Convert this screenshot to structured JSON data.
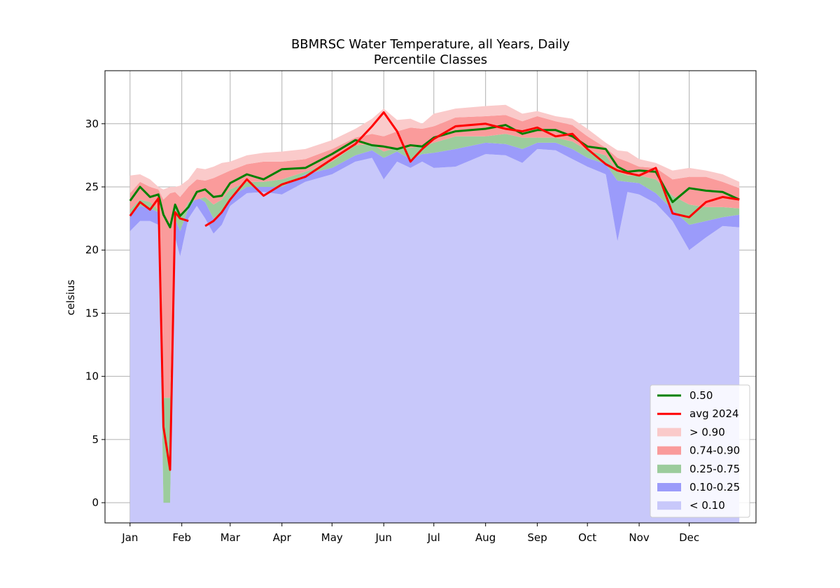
{
  "chart_data": {
    "type": "area",
    "title": "BBMRSC Water Temperature, all Years, Daily",
    "subtitle": "Percentile Classes",
    "xlabel": "",
    "ylabel": "celsius",
    "xlim": [
      -15,
      375
    ],
    "ylim": [
      -1.6,
      34.2
    ],
    "x_ticks": [
      {
        "label": "Jan",
        "day": 0
      },
      {
        "label": "Feb",
        "day": 31
      },
      {
        "label": "Mar",
        "day": 60
      },
      {
        "label": "Apr",
        "day": 91
      },
      {
        "label": "May",
        "day": 121
      },
      {
        "label": "Jun",
        "day": 152
      },
      {
        "label": "Jul",
        "day": 182
      },
      {
        "label": "Aug",
        "day": 213
      },
      {
        "label": "Sep",
        "day": 244
      },
      {
        "label": "Oct",
        "day": 274
      },
      {
        "label": "Nov",
        "day": 305
      },
      {
        "label": "Dec",
        "day": 335
      }
    ],
    "y_ticks": [
      0,
      5,
      10,
      15,
      20,
      25,
      30
    ],
    "grid": true,
    "legend_position": "lower-right",
    "days": [
      0,
      6,
      12,
      17,
      20,
      24,
      27,
      30,
      35,
      40,
      45,
      50,
      55,
      60,
      70,
      80,
      91,
      105,
      121,
      135,
      145,
      152,
      160,
      168,
      175,
      182,
      195,
      213,
      225,
      235,
      244,
      255,
      265,
      274,
      285,
      292,
      298,
      305,
      315,
      325,
      335,
      345,
      355,
      365
    ],
    "series": [
      {
        "name": "< 0.10",
        "role": "lower",
        "color": "#c8c8fa",
        "values": [
          21.5,
          22.3,
          22.3,
          22.0,
          0,
          0,
          21.0,
          19.5,
          22.5,
          23.5,
          22.5,
          21.3,
          22.0,
          23.5,
          24.5,
          24.6,
          24.4,
          25.4,
          26.0,
          27.0,
          27.3,
          25.6,
          27.0,
          26.5,
          27.0,
          26.5,
          26.6,
          27.6,
          27.5,
          26.9,
          28.0,
          27.9,
          27.2,
          26.6,
          26.0,
          20.7,
          24.6,
          24.4,
          23.7,
          22.3,
          20.0,
          21.0,
          21.9,
          21.8
        ]
      },
      {
        "name": "0.10-0.25",
        "role": "band",
        "color": "#9b9bfa",
        "values": [
          22.9,
          23.5,
          23.3,
          23.0,
          0,
          0,
          22.5,
          21.5,
          23.3,
          24.2,
          23.8,
          22.5,
          23.0,
          24.2,
          25.0,
          25.0,
          25.0,
          26.0,
          26.5,
          27.5,
          27.9,
          27.3,
          27.8,
          27.2,
          27.6,
          27.7,
          28.0,
          28.5,
          28.4,
          28.0,
          28.5,
          28.5,
          28.0,
          27.3,
          26.8,
          25.5,
          25.4,
          25.3,
          24.5,
          23.2,
          22.0,
          22.3,
          22.6,
          22.8
        ]
      },
      {
        "name": "0.25-0.75",
        "role": "band",
        "color": "#9ccc9c",
        "values": [
          23.2,
          24.0,
          23.8,
          23.2,
          8.3,
          8.3,
          23.5,
          22.5,
          23.8,
          24.0,
          24.2,
          23.6,
          24.0,
          24.8,
          25.4,
          25.4,
          25.6,
          26.2,
          27.0,
          28.3,
          28.4,
          27.8,
          28.1,
          28.1,
          28.2,
          28.5,
          29.0,
          29.0,
          29.2,
          28.9,
          28.9,
          28.9,
          28.6,
          27.9,
          27.5,
          26.2,
          25.9,
          25.9,
          25.6,
          24.3,
          23.6,
          23.4,
          23.4,
          23.3
        ]
      },
      {
        "name": "0.74-0.90",
        "role": "band",
        "color": "#fa9b9b",
        "values": [
          24.5,
          25.4,
          25.0,
          24.8,
          24.0,
          24.5,
          24.6,
          24.2,
          25.0,
          25.6,
          25.5,
          25.7,
          26.0,
          26.3,
          26.8,
          27.0,
          27.0,
          27.2,
          28.0,
          28.9,
          29.2,
          29.0,
          29.4,
          29.7,
          29.6,
          29.8,
          30.5,
          30.6,
          30.7,
          30.2,
          30.6,
          30.2,
          29.9,
          29.0,
          28.1,
          27.3,
          27.0,
          26.6,
          26.5,
          25.6,
          25.8,
          25.8,
          25.4,
          24.9
        ]
      },
      {
        "name": "> 0.90",
        "role": "upper",
        "color": "#facaca",
        "values": [
          25.9,
          26.0,
          25.6,
          25.0,
          24.8,
          25.0,
          25.0,
          25.1,
          25.6,
          26.5,
          26.4,
          26.6,
          26.9,
          27.0,
          27.5,
          27.7,
          27.8,
          28.0,
          28.7,
          29.6,
          30.4,
          31.2,
          30.3,
          30.4,
          30.0,
          30.8,
          31.2,
          31.4,
          31.5,
          30.8,
          31.0,
          30.6,
          30.4,
          29.6,
          28.5,
          27.9,
          27.8,
          27.2,
          26.9,
          26.3,
          26.5,
          26.3,
          26.0,
          25.4
        ]
      },
      {
        "name": "0.50",
        "role": "line",
        "color": "#008000",
        "values": [
          23.9,
          25.0,
          24.2,
          24.4,
          22.8,
          21.8,
          23.6,
          22.7,
          23.4,
          24.6,
          24.8,
          24.2,
          24.3,
          25.3,
          26.0,
          25.6,
          26.4,
          26.5,
          27.6,
          28.7,
          28.3,
          28.2,
          28.0,
          28.3,
          28.2,
          28.9,
          29.4,
          29.6,
          29.9,
          29.2,
          29.5,
          29.5,
          29.0,
          28.2,
          28.0,
          26.6,
          26.2,
          26.3,
          26.2,
          23.8,
          24.9,
          24.7,
          24.6,
          24.0
        ]
      },
      {
        "name": "avg 2024",
        "role": "line",
        "color": "#ff0000",
        "values": [
          22.7,
          23.8,
          23.2,
          24.1,
          6.0,
          2.6,
          23.0,
          22.5,
          22.3,
          null,
          21.9,
          22.3,
          23.0,
          24.0,
          25.6,
          24.3,
          25.2,
          25.8,
          27.2,
          28.4,
          29.8,
          30.9,
          29.4,
          27.0,
          28.0,
          28.8,
          29.8,
          30.0,
          29.6,
          29.4,
          29.7,
          29.0,
          29.2,
          28.0,
          26.8,
          26.3,
          26.1,
          25.9,
          26.5,
          22.9,
          22.6,
          23.8,
          24.2,
          24.0
        ]
      }
    ],
    "legend_entries": [
      {
        "label": "0.50",
        "kind": "line",
        "color": "#008000"
      },
      {
        "label": "avg 2024",
        "kind": "line",
        "color": "#ff0000"
      },
      {
        "label": "> 0.90",
        "kind": "patch",
        "color": "#facaca"
      },
      {
        "label": "0.74-0.90",
        "kind": "patch",
        "color": "#fa9b9b"
      },
      {
        "label": "0.25-0.75",
        "kind": "patch",
        "color": "#9ccc9c"
      },
      {
        "label": "0.10-0.25",
        "kind": "patch",
        "color": "#9b9bfa"
      },
      {
        "label": "< 0.10",
        "kind": "patch",
        "color": "#c8c8fa"
      }
    ]
  }
}
